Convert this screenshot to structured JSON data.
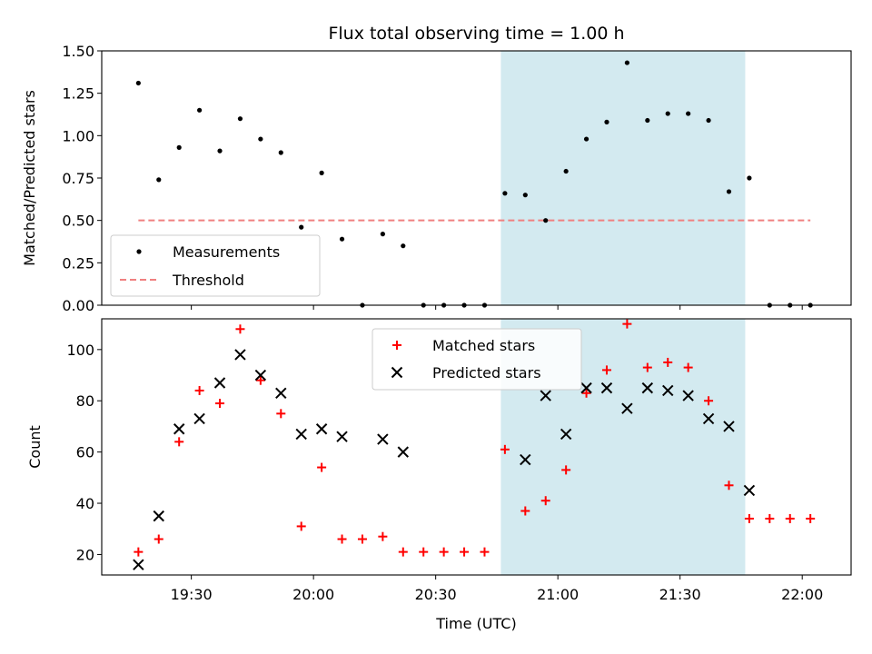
{
  "chart_data": [
    {
      "type": "scatter",
      "title": "Flux total observing time = 1.00 h",
      "ylabel": "Matched/Predicted stars",
      "xlabel": "",
      "ylim": [
        0,
        1.5
      ],
      "yticks": [
        "0.00",
        "0.25",
        "0.50",
        "0.75",
        "1.00",
        "1.25",
        "1.50"
      ],
      "legend": {
        "position": "lower-left"
      },
      "highlight_span": {
        "x0": "20:46",
        "x1": "21:46",
        "color": "#d3eaf0"
      },
      "series": [
        {
          "name": "Measurements",
          "marker": "dot",
          "color": "#000000",
          "points": [
            {
              "x": "19:17",
              "y": 1.31
            },
            {
              "x": "19:22",
              "y": 0.74
            },
            {
              "x": "19:27",
              "y": 0.93
            },
            {
              "x": "19:32",
              "y": 1.15
            },
            {
              "x": "19:37",
              "y": 0.91
            },
            {
              "x": "19:42",
              "y": 1.1
            },
            {
              "x": "19:47",
              "y": 0.98
            },
            {
              "x": "19:52",
              "y": 0.9
            },
            {
              "x": "19:57",
              "y": 0.46
            },
            {
              "x": "20:02",
              "y": 0.78
            },
            {
              "x": "20:07",
              "y": 0.39
            },
            {
              "x": "20:12",
              "y": 0.0
            },
            {
              "x": "20:17",
              "y": 0.42
            },
            {
              "x": "20:22",
              "y": 0.35
            },
            {
              "x": "20:27",
              "y": 0.0
            },
            {
              "x": "20:32",
              "y": 0.0
            },
            {
              "x": "20:37",
              "y": 0.0
            },
            {
              "x": "20:42",
              "y": 0.0
            },
            {
              "x": "20:47",
              "y": 0.66
            },
            {
              "x": "20:52",
              "y": 0.65
            },
            {
              "x": "20:57",
              "y": 0.5
            },
            {
              "x": "21:02",
              "y": 0.79
            },
            {
              "x": "21:07",
              "y": 0.98
            },
            {
              "x": "21:12",
              "y": 1.08
            },
            {
              "x": "21:17",
              "y": 1.43
            },
            {
              "x": "21:22",
              "y": 1.09
            },
            {
              "x": "21:27",
              "y": 1.13
            },
            {
              "x": "21:32",
              "y": 1.13
            },
            {
              "x": "21:37",
              "y": 1.09
            },
            {
              "x": "21:42",
              "y": 0.67
            },
            {
              "x": "21:47",
              "y": 0.75
            },
            {
              "x": "21:52",
              "y": 0.0
            },
            {
              "x": "21:57",
              "y": 0.0
            },
            {
              "x": "22:02",
              "y": 0.0
            }
          ]
        },
        {
          "name": "Threshold",
          "marker": "dashed-line",
          "color": "#f08080",
          "points": [
            {
              "x": "19:17",
              "y": 0.5
            },
            {
              "x": "22:02",
              "y": 0.5
            }
          ]
        }
      ]
    },
    {
      "type": "scatter",
      "title": "",
      "ylabel": "Count",
      "xlabel": "Time (UTC)",
      "xlim": [
        "19:08",
        "22:12"
      ],
      "xticks": [
        "19:30",
        "20:00",
        "20:30",
        "21:00",
        "21:30",
        "22:00"
      ],
      "ylim": [
        12,
        112
      ],
      "yticks": [
        "20",
        "40",
        "60",
        "80",
        "100"
      ],
      "legend": {
        "position": "upper-center"
      },
      "highlight_span": {
        "x0": "20:46",
        "x1": "21:46",
        "color": "#d3eaf0"
      },
      "series": [
        {
          "name": "Matched stars",
          "marker": "plus",
          "color": "#ff0000",
          "points": [
            {
              "x": "19:17",
              "y": 21
            },
            {
              "x": "19:22",
              "y": 26
            },
            {
              "x": "19:27",
              "y": 64
            },
            {
              "x": "19:32",
              "y": 84
            },
            {
              "x": "19:37",
              "y": 79
            },
            {
              "x": "19:42",
              "y": 108
            },
            {
              "x": "19:47",
              "y": 88
            },
            {
              "x": "19:52",
              "y": 75
            },
            {
              "x": "19:57",
              "y": 31
            },
            {
              "x": "20:02",
              "y": 54
            },
            {
              "x": "20:07",
              "y": 26
            },
            {
              "x": "20:12",
              "y": 26
            },
            {
              "x": "20:17",
              "y": 27
            },
            {
              "x": "20:22",
              "y": 21
            },
            {
              "x": "20:27",
              "y": 21
            },
            {
              "x": "20:32",
              "y": 21
            },
            {
              "x": "20:37",
              "y": 21
            },
            {
              "x": "20:42",
              "y": 21
            },
            {
              "x": "20:47",
              "y": 61
            },
            {
              "x": "20:52",
              "y": 37
            },
            {
              "x": "20:57",
              "y": 41
            },
            {
              "x": "21:02",
              "y": 53
            },
            {
              "x": "21:07",
              "y": 83
            },
            {
              "x": "21:12",
              "y": 92
            },
            {
              "x": "21:17",
              "y": 110
            },
            {
              "x": "21:22",
              "y": 93
            },
            {
              "x": "21:27",
              "y": 95
            },
            {
              "x": "21:32",
              "y": 93
            },
            {
              "x": "21:37",
              "y": 80
            },
            {
              "x": "21:42",
              "y": 47
            },
            {
              "x": "21:47",
              "y": 34
            },
            {
              "x": "21:52",
              "y": 34
            },
            {
              "x": "21:57",
              "y": 34
            },
            {
              "x": "22:02",
              "y": 34
            }
          ]
        },
        {
          "name": "Predicted stars",
          "marker": "x",
          "color": "#000000",
          "points": [
            {
              "x": "19:17",
              "y": 16
            },
            {
              "x": "19:22",
              "y": 35
            },
            {
              "x": "19:27",
              "y": 69
            },
            {
              "x": "19:32",
              "y": 73
            },
            {
              "x": "19:37",
              "y": 87
            },
            {
              "x": "19:42",
              "y": 98
            },
            {
              "x": "19:47",
              "y": 90
            },
            {
              "x": "19:52",
              "y": 83
            },
            {
              "x": "19:57",
              "y": 67
            },
            {
              "x": "20:02",
              "y": 69
            },
            {
              "x": "20:07",
              "y": 66
            },
            {
              "x": "20:17",
              "y": 65
            },
            {
              "x": "20:22",
              "y": 60
            },
            {
              "x": "20:52",
              "y": 57
            },
            {
              "x": "20:57",
              "y": 82
            },
            {
              "x": "21:02",
              "y": 67
            },
            {
              "x": "21:07",
              "y": 85
            },
            {
              "x": "21:12",
              "y": 85
            },
            {
              "x": "21:17",
              "y": 77
            },
            {
              "x": "21:22",
              "y": 85
            },
            {
              "x": "21:27",
              "y": 84
            },
            {
              "x": "21:32",
              "y": 82
            },
            {
              "x": "21:37",
              "y": 73
            },
            {
              "x": "21:42",
              "y": 70
            },
            {
              "x": "21:47",
              "y": 45
            }
          ]
        }
      ]
    }
  ]
}
